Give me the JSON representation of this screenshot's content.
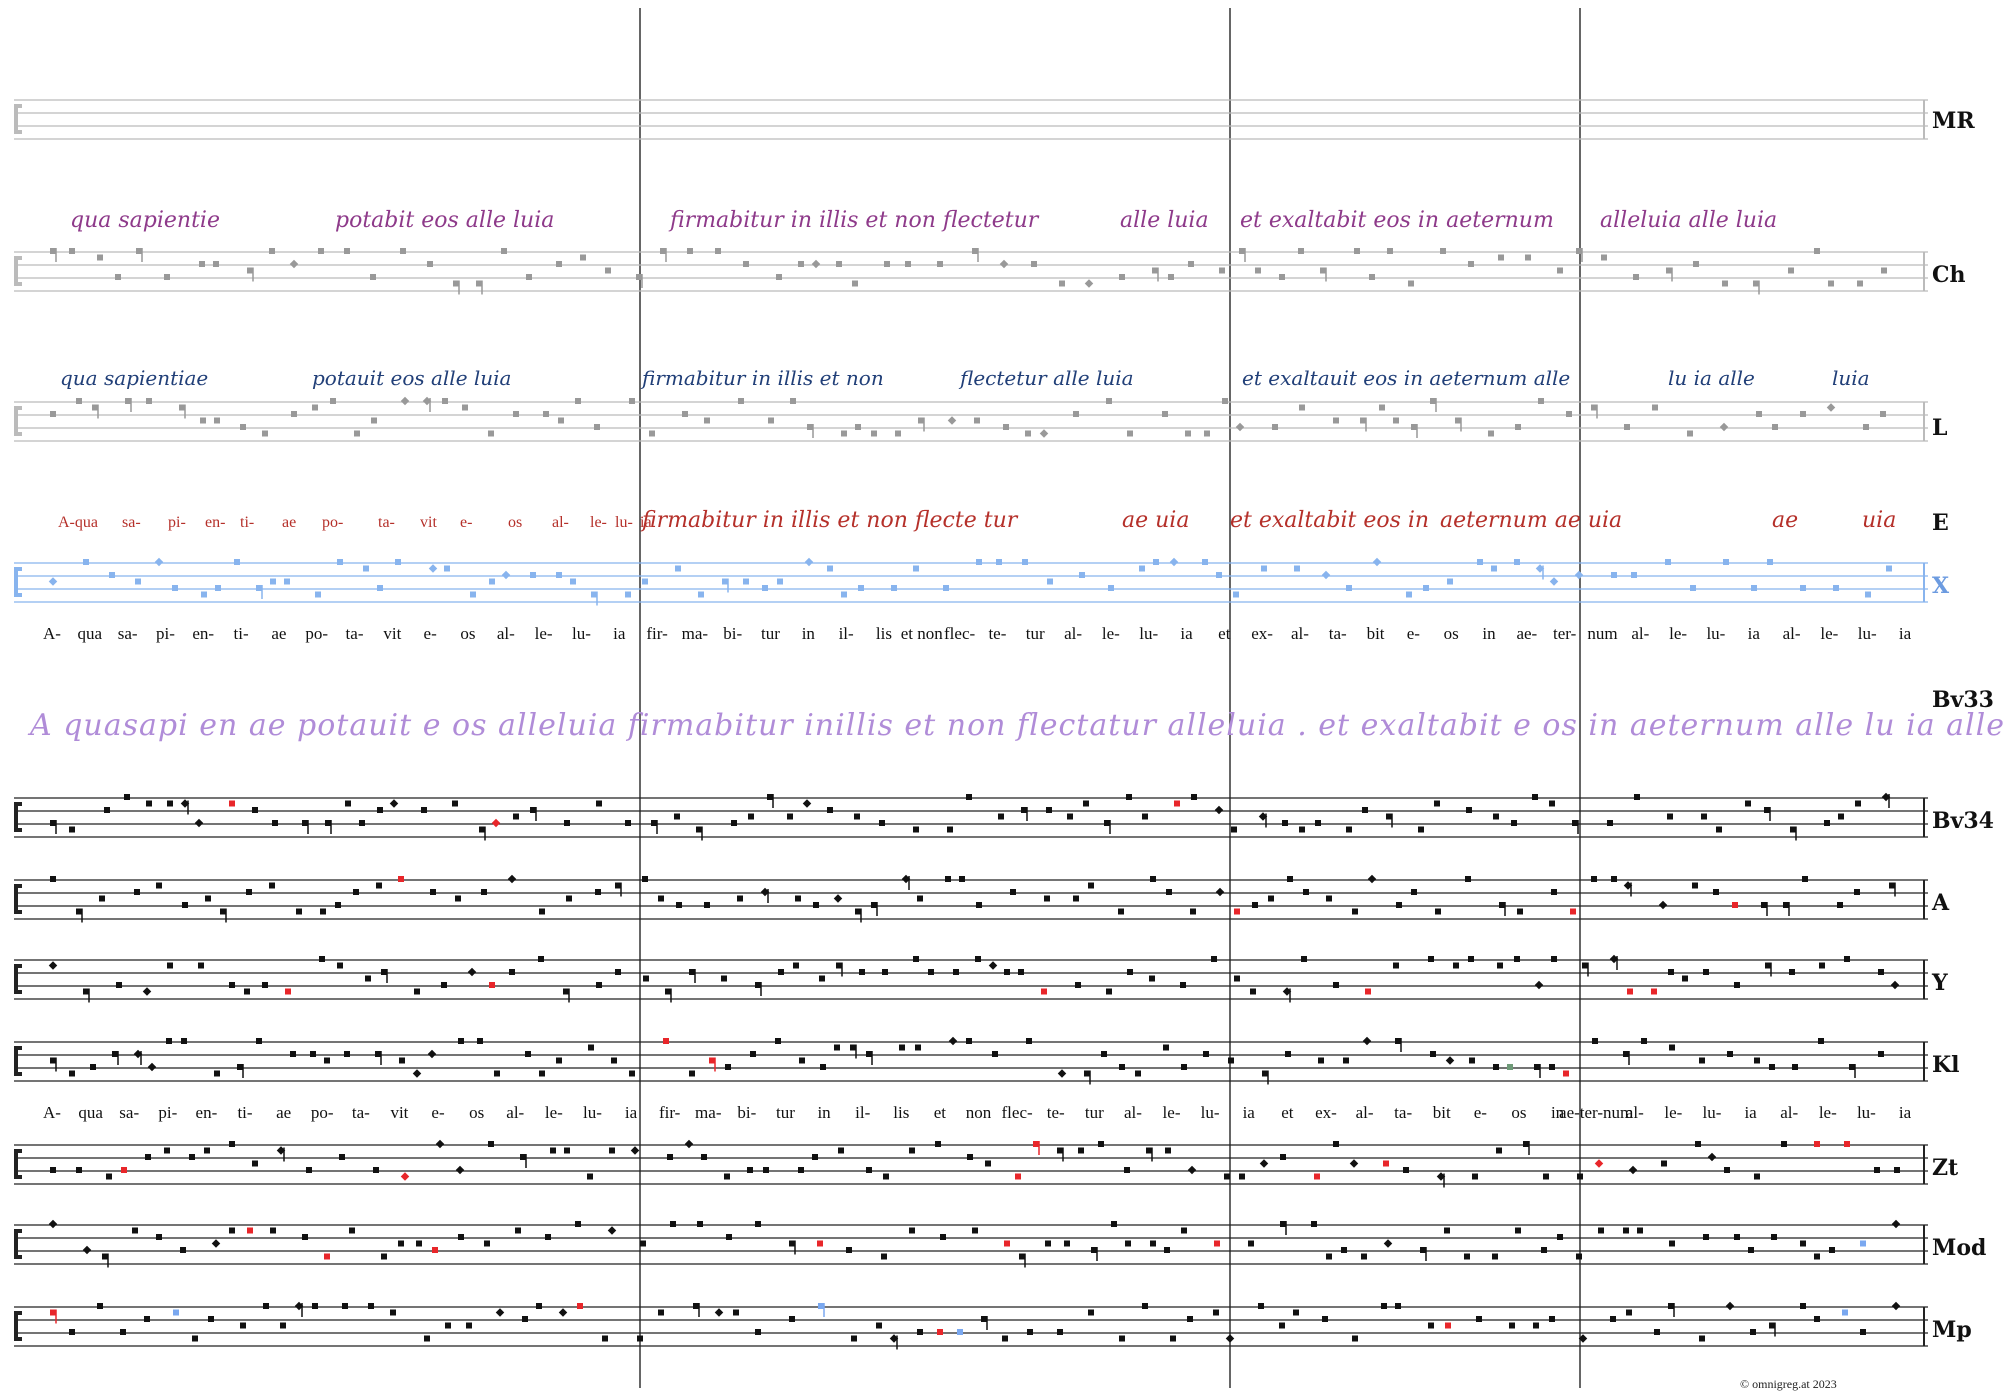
{
  "colors": {
    "staff": "#222222",
    "staff_faint": "#bbbbbb",
    "note": "#111111",
    "note_grey": "#999999",
    "note_red": "#e8262a",
    "note_green": "#6e9a78",
    "note_blue": "#7aa8f0",
    "x_staff": "#88b4ee",
    "ch_text": "#8e3a8a",
    "l_text": "#213f78",
    "e_text": "#b5302a",
    "bv33_text": "#b08cd8"
  },
  "sigla": {
    "mr": "MR",
    "ch": "Ch",
    "l": "L",
    "e": "E",
    "x": "X",
    "bv33": "Bv33",
    "bv34": "Bv34",
    "a": "A",
    "y": "Y",
    "kl": "Kl",
    "zt": "Zt",
    "mod": "Mod",
    "mp": "Mp"
  },
  "syllables": [
    "A-",
    "qua",
    "sa-",
    "pi-",
    "en-",
    "ti-",
    "ae",
    "po-",
    "ta-",
    "vit",
    "e-",
    "os",
    "al-",
    "le-",
    "lu-",
    "ia",
    "fir-",
    "ma-",
    "bi-",
    "tur",
    "in",
    "il-",
    "lis",
    "et non",
    "flec-",
    "te-",
    "tur",
    "al-",
    "le-",
    "lu-",
    "ia",
    "et",
    "ex-",
    "al-",
    "ta-",
    "bit",
    "e-",
    "os",
    "in",
    "ae-",
    "ter-",
    "num",
    "al-",
    "le-",
    "lu-",
    "ia",
    "al-",
    "le-",
    "lu-",
    "ia"
  ],
  "syllables_lower": [
    "A-",
    "qua",
    "sa-",
    "pi-",
    "en-",
    "ti-",
    "ae",
    "po-",
    "ta-",
    "vit",
    "e-",
    "os",
    "al-",
    "le-",
    "lu-",
    "ia",
    "fir-",
    "ma-",
    "bi-",
    "tur",
    "in",
    "il-",
    "lis",
    "et",
    "non",
    "flec-",
    "te-",
    "tur",
    "al-",
    "le-",
    "lu-",
    "ia",
    "et",
    "ex-",
    "al-",
    "ta-",
    "bit",
    "e-",
    "os",
    "in",
    "ae-ter-num",
    "al-",
    "le-",
    "lu-",
    "ia",
    "al-",
    "le-",
    "lu-",
    "ia"
  ],
  "manuscript_text": {
    "ch": [
      "qua sapientie",
      "potabit eos alle luia",
      "firmabitur in illis et non flectetur",
      "alle luia",
      "et exaltabit eos in aeternum",
      "alleluia alle luia"
    ],
    "l": [
      "qua sapientiae",
      "potauit eos alle luia",
      "firmabitur in illis et non",
      "flectetur alle luia",
      "et exaltauit eos in aeternum alle",
      "lu ia alle",
      "luia"
    ],
    "e_upper": [
      "firmabitur in illis et non flecte tur",
      "ae uia",
      "et exaltabit eos in",
      "aeternum ae uia",
      "ae",
      "uia"
    ],
    "e_lower": [
      "A-qua",
      "sa-",
      "pi-",
      "en-",
      "ti-",
      "ae",
      "po-",
      "ta-",
      "vit",
      "e-",
      "os",
      "al-",
      "le-",
      "lu-",
      "ia"
    ],
    "bv33": "A quasapi en ae potauit e os alleluia firmabitur inillis et non flectatur alleluia . et exaltabit e os in aeternum alle lu ia alle luia ."
  },
  "copyright": "©  omnigreg.at     2023"
}
